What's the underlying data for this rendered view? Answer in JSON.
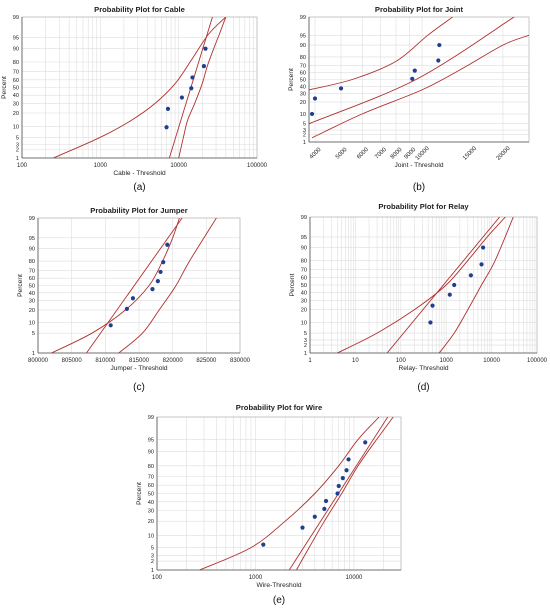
{
  "panels": [
    {
      "id": "a",
      "caption": "(a)",
      "chart_data": {
        "type": "scatter",
        "title": "Probability Plot for Cable",
        "xlabel": "Cable - Threshold",
        "ylabel": "Percent",
        "xscale": "log",
        "yscale": "probability",
        "xlim": [
          100,
          100000
        ],
        "ylim": [
          1,
          99
        ],
        "xticks": [
          100,
          1000,
          10000,
          100000
        ],
        "xtick_labels": [
          "100",
          "1000",
          "10000",
          "100000"
        ],
        "yticks": [
          1,
          2,
          3,
          5,
          10,
          20,
          30,
          40,
          50,
          60,
          70,
          80,
          90,
          95,
          99
        ],
        "ytick_labels": [
          "1",
          "2",
          "3",
          "5",
          "10",
          "20",
          "30",
          "40",
          "50",
          "60",
          "70",
          "80",
          "90",
          "95",
          "99"
        ],
        "points": {
          "x": [
            7000,
            7300,
            11000,
            14500,
            15000,
            21000,
            22000
          ],
          "y": [
            9.5,
            24,
            37,
            49,
            63,
            76,
            90
          ]
        },
        "fit_line": {
          "x": [
            7600,
            27000
          ],
          "y": [
            1,
            99
          ]
        },
        "ci_lower": {
          "x": [
            250,
            1000,
            2500,
            5000,
            9000,
            14000,
            24000,
            40000
          ],
          "y": [
            1,
            5,
            14,
            30,
            55,
            80,
            96,
            99
          ]
        },
        "ci_upper": {
          "x": [
            10000,
            11500,
            13000,
            16000,
            20000,
            23000,
            28000,
            33000,
            40000
          ],
          "y": [
            1,
            5,
            14,
            30,
            55,
            75,
            90,
            96,
            99
          ]
        },
        "grid": true
      }
    },
    {
      "id": "b",
      "caption": "(b)",
      "chart_data": {
        "type": "scatter",
        "title": "Probability Plot for Joint",
        "xlabel": "Joint - Threshold",
        "ylabel": "Percent",
        "xscale": "log",
        "yscale": "probability",
        "xlim": [
          3800,
          25000
        ],
        "ylim": [
          1,
          99
        ],
        "xticks": [
          4000,
          5000,
          6000,
          7000,
          8000,
          9000,
          10000,
          15000,
          20000
        ],
        "xtick_labels": [
          "4000",
          "5000",
          "6000",
          "7000",
          "8000",
          "9000",
          "10000",
          "15000",
          "20000"
        ],
        "yticks": [
          1,
          2,
          3,
          5,
          10,
          20,
          30,
          40,
          50,
          60,
          70,
          80,
          90,
          95,
          99
        ],
        "ytick_labels": [
          "1",
          "2",
          "3",
          "5",
          "10",
          "20",
          "30",
          "40",
          "50",
          "60",
          "70",
          "80",
          "90",
          "95",
          "99"
        ],
        "points": {
          "x": [
            3900,
            4000,
            5000,
            9200,
            9400,
            11500,
            11600
          ],
          "y": [
            10,
            24,
            37,
            51,
            63,
            76,
            90
          ]
        },
        "fit_line": {
          "x": [
            3800,
            9500,
            22000
          ],
          "y": [
            5,
            50,
            99
          ]
        },
        "ci_lower": {
          "x": [
            3900,
            6000,
            10000,
            14000,
            20000,
            25000
          ],
          "y": [
            1.5,
            10,
            35,
            65,
            90,
            95
          ]
        },
        "ci_upper": {
          "x": [
            3800,
            5500,
            8000,
            10500,
            13000
          ],
          "y": [
            35,
            50,
            75,
            95,
            99
          ]
        },
        "grid": true
      }
    },
    {
      "id": "c",
      "caption": "(c)",
      "chart_data": {
        "type": "scatter",
        "title": "Probability Plot for Jumper",
        "xlabel": "Jumper - Threshold",
        "ylabel": "Percent",
        "xscale": "linear",
        "yscale": "probability",
        "xlim": [
          800000,
          830000
        ],
        "ylim": [
          1,
          99
        ],
        "xticks": [
          800000,
          805000,
          810000,
          815000,
          820000,
          825000,
          830000
        ],
        "xtick_labels": [
          "800000",
          "805000",
          "810000",
          "815000",
          "820000",
          "825000",
          "830000"
        ],
        "yticks": [
          1,
          5,
          10,
          20,
          30,
          40,
          50,
          60,
          70,
          80,
          90,
          95,
          99
        ],
        "ytick_labels": [
          "1",
          "5",
          "10",
          "20",
          "30",
          "40",
          "50",
          "60",
          "70",
          "80",
          "90",
          "95",
          "99"
        ],
        "points": {
          "x": [
            810800,
            813200,
            814100,
            817000,
            817800,
            818200,
            818600,
            819200
          ],
          "y": [
            8.5,
            21,
            33,
            45,
            56,
            68,
            79,
            92
          ]
        },
        "fit_line": {
          "x": [
            807200,
            821400
          ],
          "y": [
            1,
            99
          ]
        },
        "ci_lower": {
          "x": [
            802000,
            808000,
            813000,
            816500,
            818500,
            820000,
            821000
          ],
          "y": [
            1,
            5,
            20,
            50,
            80,
            95,
            99
          ]
        },
        "ci_upper": {
          "x": [
            812000,
            815500,
            818000,
            820500,
            822500,
            826500
          ],
          "y": [
            1,
            5,
            20,
            50,
            80,
            99
          ]
        },
        "grid": true
      }
    },
    {
      "id": "d",
      "caption": "(d)",
      "chart_data": {
        "type": "scatter",
        "title": "Probability Plot for Relay",
        "xlabel": "Relay- Threshold",
        "ylabel": "Percent",
        "xscale": "log",
        "yscale": "probability",
        "xlim": [
          1,
          100000
        ],
        "ylim": [
          1,
          99
        ],
        "xticks": [
          1,
          10,
          100,
          1000,
          10000,
          100000
        ],
        "xtick_labels": [
          "1",
          "10",
          "100",
          "1000",
          "10000",
          "100000"
        ],
        "yticks": [
          1,
          2,
          3,
          5,
          10,
          20,
          30,
          40,
          50,
          60,
          70,
          80,
          90,
          95,
          99
        ],
        "ytick_labels": [
          "1",
          "2",
          "3",
          "5",
          "10",
          "20",
          "30",
          "40",
          "50",
          "60",
          "70",
          "80",
          "90",
          "95",
          "99"
        ],
        "points": {
          "x": [
            450,
            500,
            1200,
            1500,
            3500,
            6000,
            6500
          ],
          "y": [
            10,
            24,
            37,
            50,
            63,
            76,
            90
          ]
        },
        "fit_line": {
          "x": [
            50,
            15000
          ],
          "y": [
            1,
            99
          ]
        },
        "ci_lower": {
          "x": [
            4,
            30,
            200,
            1000,
            3000,
            8000,
            20000
          ],
          "y": [
            1,
            5,
            20,
            50,
            80,
            95,
            99
          ]
        },
        "ci_upper": {
          "x": [
            700,
            1500,
            3000,
            6000,
            12000,
            30000
          ],
          "y": [
            1,
            5,
            20,
            50,
            80,
            99
          ]
        },
        "grid": true
      }
    },
    {
      "id": "e",
      "caption": "(e)",
      "chart_data": {
        "type": "scatter",
        "title": "Probability Plot for Wire",
        "xlabel": "Wire-Threshold",
        "ylabel": "Percent",
        "xscale": "log",
        "yscale": "probability",
        "xlim": [
          100,
          30000
        ],
        "ylim": [
          1,
          99
        ],
        "xticks": [
          100,
          1000,
          10000
        ],
        "xtick_labels": [
          "100",
          "1000",
          "10000"
        ],
        "yticks": [
          1,
          2,
          3,
          5,
          10,
          20,
          30,
          40,
          50,
          60,
          70,
          80,
          90,
          95,
          99
        ],
        "ytick_labels": [
          "1",
          "2",
          "3",
          "5",
          "10",
          "20",
          "30",
          "40",
          "50",
          "60",
          "70",
          "80",
          "90",
          "95",
          "99"
        ],
        "points": {
          "x": [
            1200,
            3000,
            4000,
            5000,
            5200,
            6800,
            7000,
            7700,
            8400,
            8800,
            13000
          ],
          "y": [
            6,
            15,
            24,
            32,
            41,
            50,
            59,
            68,
            76,
            85,
            94
          ]
        },
        "fit_line": {
          "x": [
            2200,
            22000
          ],
          "y": [
            1,
            99
          ]
        },
        "ci_lower": {
          "x": [
            270,
            900,
            2000,
            4000,
            7000,
            11000,
            18000
          ],
          "y": [
            1,
            5,
            20,
            50,
            80,
            95,
            99
          ]
        },
        "ci_upper": {
          "x": [
            2600,
            3500,
            5000,
            7500,
            11000,
            17000,
            25000
          ],
          "y": [
            1,
            5,
            20,
            50,
            80,
            95,
            99
          ]
        },
        "grid": true
      }
    }
  ],
  "colors": {
    "points": "#1f3f8f",
    "curves": "#b03030",
    "grid": "#dedede",
    "axis": "#555555",
    "text": "#222222"
  }
}
